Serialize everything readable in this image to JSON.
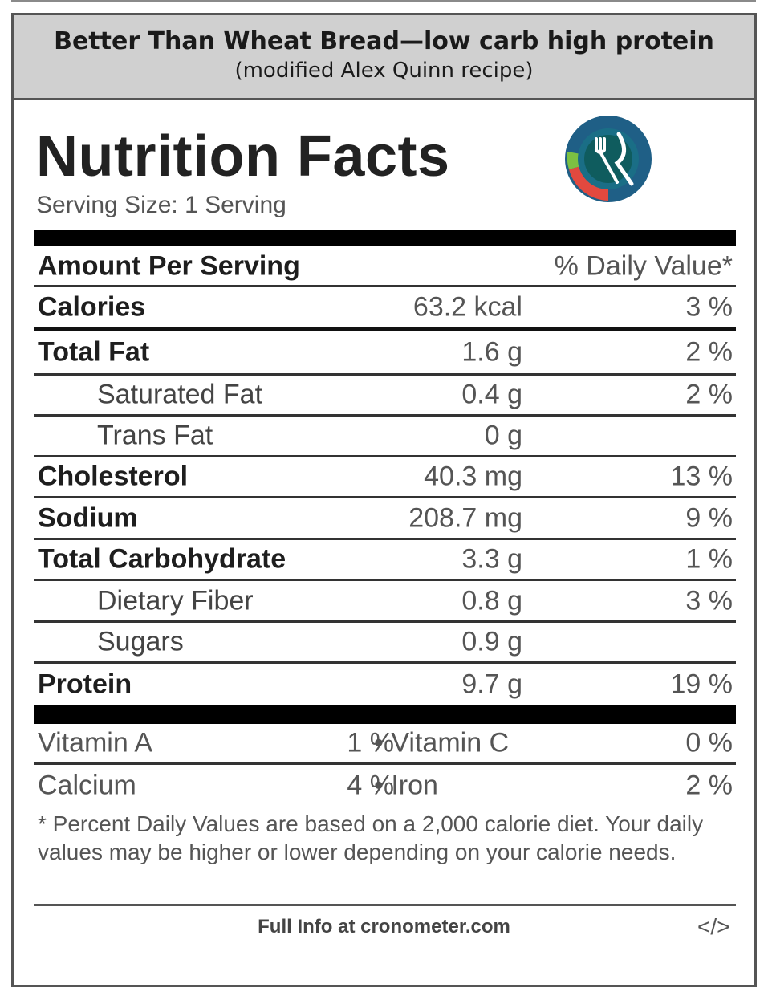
{
  "header": {
    "title": "Better Than Wheat Bread—low carb high protein",
    "subtitle": "(modified Alex Quinn recipe)"
  },
  "label": {
    "title": "Nutrition Facts",
    "serving_size": "Serving Size: 1 Serving",
    "logo_icon": "fork-knife-plate-icon",
    "amount_per_serving": "Amount Per Serving",
    "daily_value_header": "% Daily Value*",
    "rows": [
      {
        "label": "Calories",
        "amount": "63.2 kcal",
        "dv": "3 %"
      },
      {
        "label": "Total Fat",
        "amount": "1.6 g",
        "dv": "2 %"
      },
      {
        "label": "Saturated Fat",
        "amount": "0.4 g",
        "dv": "2 %"
      },
      {
        "label": "Trans Fat",
        "amount": "0 g",
        "dv": ""
      },
      {
        "label": "Cholesterol",
        "amount": "40.3 mg",
        "dv": "13 %"
      },
      {
        "label": "Sodium",
        "amount": "208.7 mg",
        "dv": "9 %"
      },
      {
        "label": "Total Carbohydrate",
        "amount": "3.3 g",
        "dv": "1 %"
      },
      {
        "label": "Dietary Fiber",
        "amount": "0.8 g",
        "dv": "3 %"
      },
      {
        "label": "Sugars",
        "amount": "0.9 g",
        "dv": ""
      },
      {
        "label": "Protein",
        "amount": "9.7 g",
        "dv": "19 %"
      }
    ],
    "vitamins": [
      {
        "left_label": "Vitamin A",
        "left_value": "1 %",
        "right_label": "• Vitamin C",
        "right_value": "0 %"
      },
      {
        "left_label": "Calcium",
        "left_value": "4 %",
        "right_label": "• Iron",
        "right_value": "2 %"
      }
    ],
    "footnote": "* Percent Daily Values are based on a 2,000 calorie diet. Your daily values may be higher or lower depending on your calorie needs.",
    "full_info": "Full Info at cronometer.com",
    "embed_label": "</>"
  }
}
